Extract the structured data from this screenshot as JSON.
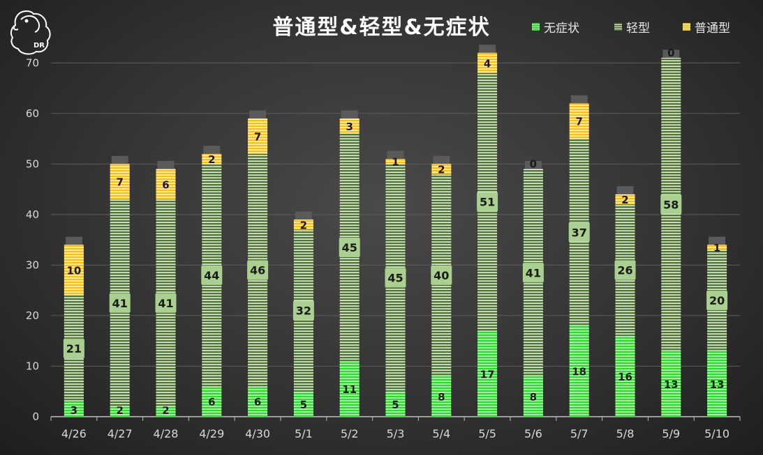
{
  "chart_data": {
    "type": "bar",
    "stacked": true,
    "title": "普通型&轻型&无症状",
    "xlabel": "",
    "ylabel": "",
    "ylim": [
      0,
      75
    ],
    "yticks": [
      0,
      10,
      20,
      30,
      40,
      50,
      60,
      70
    ],
    "grid": true,
    "legend_position": "top-right",
    "categories": [
      "4/26",
      "4/27",
      "4/28",
      "4/29",
      "4/30",
      "5/1",
      "5/2",
      "5/3",
      "5/4",
      "5/5",
      "5/6",
      "5/7",
      "5/8",
      "5/9",
      "5/10"
    ],
    "series": [
      {
        "name": "无症状",
        "color": "#1ee61e",
        "values": [
          3,
          2,
          2,
          6,
          6,
          5,
          11,
          5,
          8,
          17,
          8,
          18,
          16,
          13,
          13
        ]
      },
      {
        "name": "轻型",
        "color": "#4e7a32",
        "values": [
          21,
          41,
          41,
          44,
          46,
          32,
          45,
          45,
          40,
          51,
          41,
          37,
          26,
          58,
          20
        ]
      },
      {
        "name": "普通型",
        "color": "#ffc000",
        "values": [
          10,
          7,
          6,
          2,
          7,
          2,
          3,
          1,
          2,
          4,
          0,
          7,
          2,
          0,
          1
        ]
      }
    ]
  },
  "logo": {
    "text": "DR"
  }
}
